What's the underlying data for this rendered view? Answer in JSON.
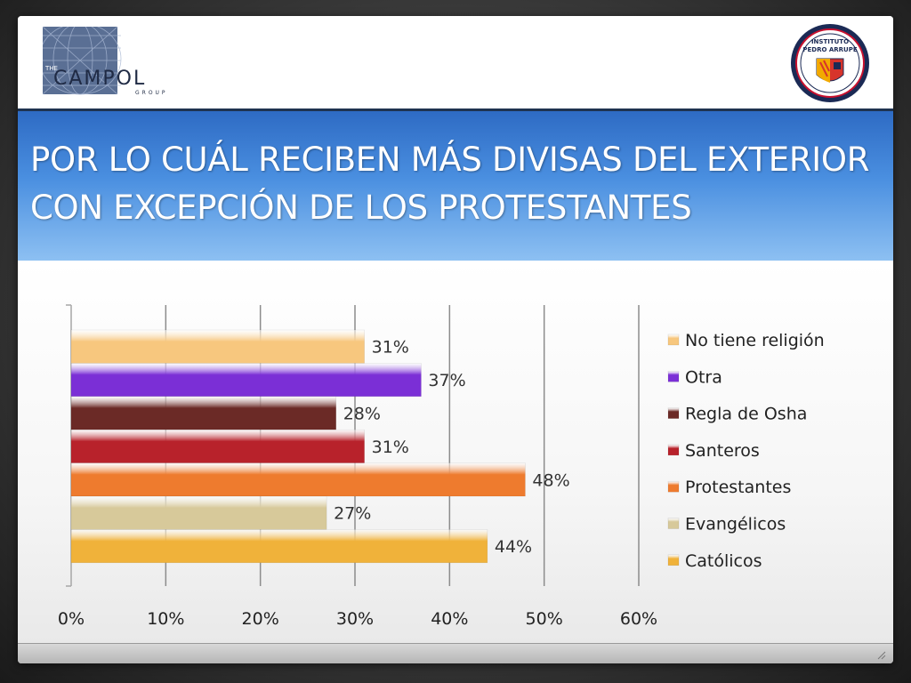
{
  "slide": {
    "title_line1": "POR LO CUÁL RECIBEN MÁS DIVISAS DEL EXTERIOR",
    "title_line2": "CON EXCEPCIÓN DE LOS PROTESTANTES"
  },
  "logos": {
    "left_the": "THE",
    "left_name": "CAMPOL",
    "left_sub": "GROUP",
    "right_line1": "INSTITUTO",
    "right_line2": "PEDRO ARRUPE"
  },
  "colors": {
    "title_band_top": "#2e6bc4",
    "title_band_bottom": "#8dc0f2",
    "no_religion": "#f7c77e",
    "otra": "#7b2fd6",
    "regla_osha": "#6b2a26",
    "santeros": "#b8222b",
    "protestantes": "#ee7b2e",
    "evangelicos": "#d7c99a",
    "catolicos": "#f0b23a"
  },
  "chart_data": {
    "type": "bar",
    "orientation": "horizontal",
    "categories": [
      "No tiene religión",
      "Otra",
      "Regla de Osha",
      "Santeros",
      "Protestantes",
      "Evangélicos",
      "Católicos"
    ],
    "values": [
      31,
      37,
      28,
      31,
      48,
      27,
      44
    ],
    "data_labels": [
      "31%",
      "37%",
      "28%",
      "31%",
      "48%",
      "27%",
      "44%"
    ],
    "xlim": [
      0,
      60
    ],
    "xticks": [
      0,
      10,
      20,
      30,
      40,
      50,
      60
    ],
    "xtick_labels": [
      "0%",
      "10%",
      "20%",
      "30%",
      "40%",
      "50%",
      "60%"
    ],
    "legend": [
      "No tiene religión",
      "Otra",
      "Regla de Osha",
      "Santeros",
      "Protestantes",
      "Evangélicos",
      "Católicos"
    ],
    "legend_position": "right",
    "grid": true,
    "title": "",
    "xlabel": "",
    "ylabel": ""
  }
}
